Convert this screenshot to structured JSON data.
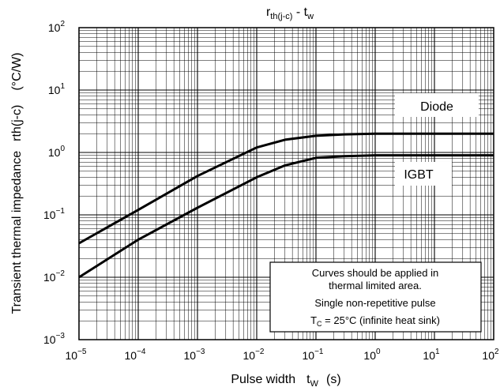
{
  "chart_data": {
    "type": "line",
    "title": {
      "main": "r",
      "sub": "th(j-c)",
      "sep": " - ",
      "main2": "t",
      "sub2": "w"
    },
    "xlabel": {
      "text": "Pulse width",
      "var": "t",
      "var_sub": "W",
      "unit": "(s)"
    },
    "ylabel": {
      "text": "Transient thermal impedance",
      "var": "rth(j-c)",
      "unit": "(°C/W)"
    },
    "x_scale": "log",
    "y_scale": "log",
    "xlim": [
      1e-05,
      100
    ],
    "ylim": [
      0.001,
      100
    ],
    "grid": true,
    "x_ticks": [
      {
        "base": "10",
        "exp": "−5"
      },
      {
        "base": "10",
        "exp": "−4"
      },
      {
        "base": "10",
        "exp": "−3"
      },
      {
        "base": "10",
        "exp": "−2"
      },
      {
        "base": "10",
        "exp": "−1"
      },
      {
        "base": "10",
        "exp": "0"
      },
      {
        "base": "10",
        "exp": "1"
      },
      {
        "base": "10",
        "exp": "2"
      }
    ],
    "y_ticks": [
      {
        "base": "10",
        "exp": "−3"
      },
      {
        "base": "10",
        "exp": "−2"
      },
      {
        "base": "10",
        "exp": "−1"
      },
      {
        "base": "10",
        "exp": "0"
      },
      {
        "base": "10",
        "exp": "1"
      },
      {
        "base": "10",
        "exp": "2"
      }
    ],
    "series": [
      {
        "name": "Diode",
        "x": [
          1e-05,
          0.0001,
          0.001,
          0.01,
          0.03,
          0.1,
          0.3,
          1,
          10,
          100
        ],
        "y": [
          0.035,
          0.12,
          0.42,
          1.2,
          1.6,
          1.85,
          1.95,
          2.0,
          2.0,
          2.0
        ]
      },
      {
        "name": "IGBT",
        "x": [
          1e-05,
          0.0001,
          0.001,
          0.01,
          0.03,
          0.1,
          0.3,
          1,
          10,
          100
        ],
        "y": [
          0.01,
          0.04,
          0.13,
          0.4,
          0.62,
          0.82,
          0.87,
          0.9,
          0.9,
          0.9
        ]
      }
    ],
    "annotations": {
      "line1": "Curves should be applied in",
      "line2": "thermal limited area.",
      "line3": "Single non-repetitive pulse",
      "line4_var": "T",
      "line4_sub": "C",
      "line4_rest": " = 25°C (infinite heat sink)"
    },
    "colors": {
      "curve": "#000000",
      "grid": "#000000",
      "background": "#ffffff"
    }
  }
}
